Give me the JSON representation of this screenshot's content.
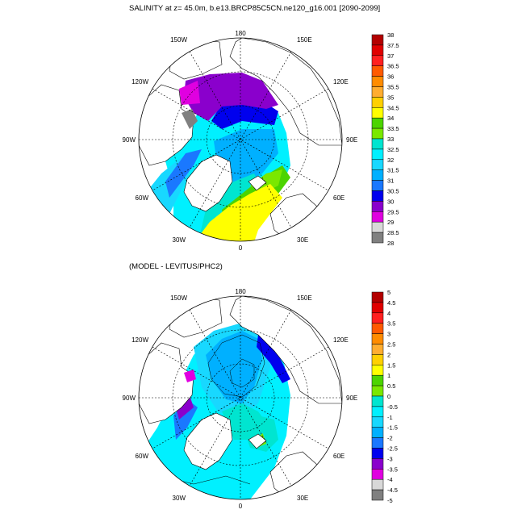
{
  "title": "SALINITY at z=  45.0m, b.e13.BRCP85C5CN.ne120_g16.001 [2090-2099]",
  "subtitle": "(MODEL - LEVITUS/PHC2)",
  "lon_labels": {
    "n180": "180",
    "n150w": "150W",
    "n150e": "150E",
    "n120w": "120W",
    "n120e": "120E",
    "n90w": "90W",
    "n90e": "90E",
    "n60w": "60W",
    "n60e": "60E",
    "n30w": "30W",
    "n30e": "30E",
    "n0": "0"
  },
  "colorbar_top": {
    "labels": [
      "38",
      "37.5",
      "37",
      "36.5",
      "36",
      "35.5",
      "35",
      "34.5",
      "34",
      "33.5",
      "33",
      "32.5",
      "32",
      "31.5",
      "31",
      "30.5",
      "30",
      "29.5",
      "29",
      "28.5",
      "28"
    ],
    "colors": [
      "#b30000",
      "#e00000",
      "#ff2020",
      "#ff5a00",
      "#ff8c00",
      "#ffad30",
      "#ffd000",
      "#ffff00",
      "#4cd400",
      "#7ae800",
      "#00e5d0",
      "#00f0ff",
      "#18d8ff",
      "#00b0ff",
      "#1a78ff",
      "#0000ee",
      "#8a00cc",
      "#e000e0",
      "#d8d8d8",
      "#808080"
    ]
  },
  "colorbar_bottom": {
    "labels": [
      "5",
      "4.5",
      "4",
      "3.5",
      "3",
      "2.5",
      "2",
      "1.5",
      "1",
      "0.5",
      "0",
      "-0.5",
      "-1",
      "-1.5",
      "-2",
      "-2.5",
      "-3",
      "-3.5",
      "-4",
      "-4.5",
      "-5"
    ],
    "colors": [
      "#b30000",
      "#e00000",
      "#ff2020",
      "#ff5a00",
      "#ff8c00",
      "#ffad30",
      "#ffd000",
      "#ffff00",
      "#4cd400",
      "#7ae800",
      "#00e5d0",
      "#00f0ff",
      "#18d8ff",
      "#00b0ff",
      "#1a78ff",
      "#0000ee",
      "#8a00cc",
      "#e000e0",
      "#d8d8d8",
      "#808080"
    ]
  }
}
